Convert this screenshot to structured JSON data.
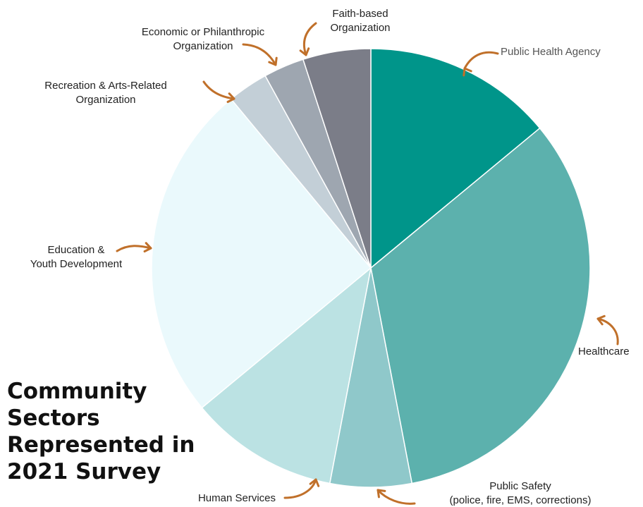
{
  "chart_data": {
    "type": "pie",
    "title_lines": [
      "Community",
      "Sectors",
      "Represented in",
      "2021 Survey"
    ],
    "arrow_color": "#c0702a",
    "slices": [
      {
        "label_lines": [
          "Public Health Agency"
        ],
        "value": 14,
        "color": "#00958a"
      },
      {
        "label_lines": [
          "Healthcare"
        ],
        "value": 33,
        "color": "#5cb1ad"
      },
      {
        "label_lines": [
          "Public Safety",
          "(police, fire, EMS, corrections)"
        ],
        "value": 6,
        "color": "#8fc8ca"
      },
      {
        "label_lines": [
          "Human Services"
        ],
        "value": 11,
        "color": "#bbe2e3"
      },
      {
        "label_lines": [
          "Education &",
          "Youth Development"
        ],
        "value": 25,
        "color": "#eaf9fc"
      },
      {
        "label_lines": [
          "Recreation & Arts-Related",
          "Organization"
        ],
        "value": 3,
        "color": "#c3cfd7"
      },
      {
        "label_lines": [
          "Economic or Philanthropic",
          "Organization"
        ],
        "value": 3,
        "color": "#9ea6b0"
      },
      {
        "label_lines": [
          "Faith-based",
          "Organization"
        ],
        "value": 5,
        "color": "#7b7d88"
      }
    ]
  }
}
